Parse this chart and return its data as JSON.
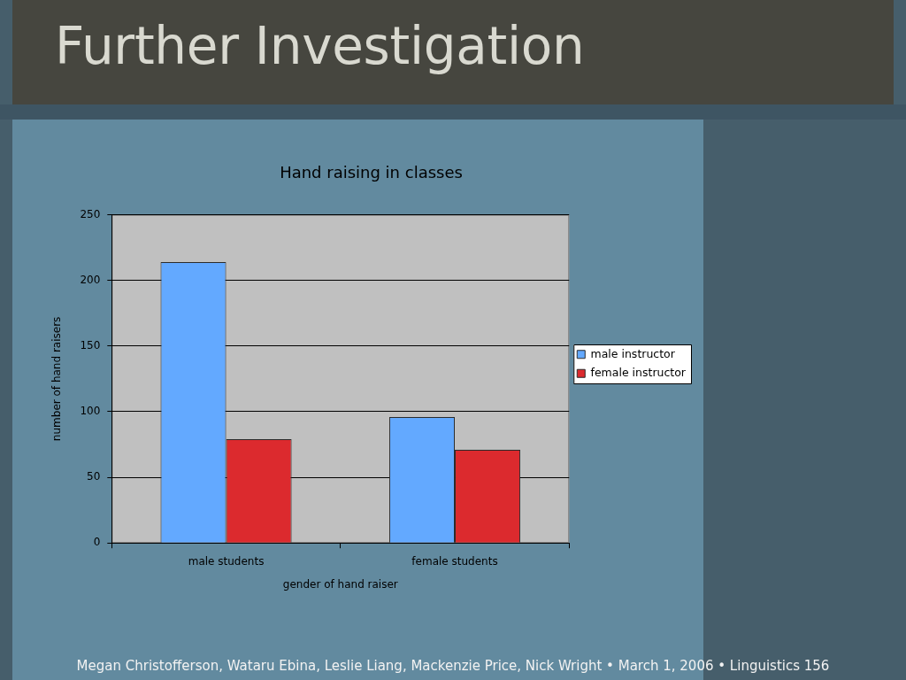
{
  "chart_data": {
    "type": "bar",
    "title": "Further Investigation",
    "subtitle": "Hand raising in classes",
    "xlabel": "gender of hand raiser",
    "ylabel": "number of hand raisers",
    "categories": [
      "male students",
      "female students"
    ],
    "series": [
      {
        "name": "male instructor",
        "color": "#63a9ff",
        "values": [
          214,
          96
        ]
      },
      {
        "name": "female instructor",
        "color": "#dc2a2e",
        "values": [
          79,
          71
        ]
      }
    ],
    "ylim": [
      0,
      250
    ],
    "yticks": [
      0,
      50,
      100,
      150,
      200,
      250
    ],
    "grid": "y",
    "legend": "right",
    "annotations": [
      "Megan Christofferson, Wataru Ebina, Leslie Liang, Mackenzie Price, Nick Wright • March 1, 2006 • Linguistics 156"
    ]
  }
}
